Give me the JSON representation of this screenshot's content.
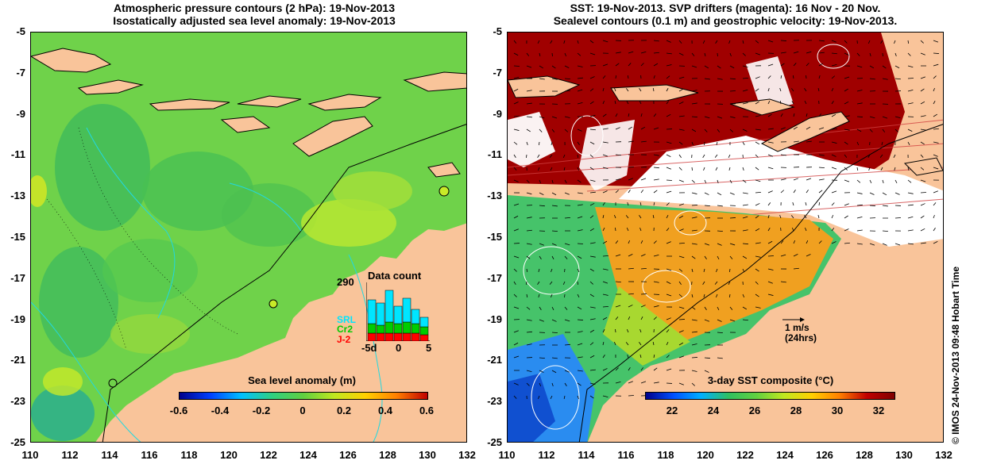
{
  "left_panel": {
    "title_line1": "Atmospheric pressure contours (2 hPa): 19-Nov-2013",
    "title_line2": "Isostatically adjusted sea level anomaly: 19-Nov-2013",
    "colorbar_title": "Sea level anomaly (m)",
    "colorbar_ticks": [
      "-0.6",
      "-0.4",
      "-0.2",
      "0",
      "0.2",
      "0.4",
      "0.6"
    ],
    "inset": {
      "title": "Data count",
      "max_label": "290",
      "legend": [
        {
          "name": "SRL",
          "color": "#00e5ff"
        },
        {
          "name": "Cr2",
          "color": "#00cc00"
        },
        {
          "name": "J-2",
          "color": "#ff0000"
        }
      ],
      "x_ticks": [
        "-5d",
        "0",
        "5"
      ]
    }
  },
  "right_panel": {
    "title_line1": "SST: 19-Nov-2013. SVP drifters (magenta): 16 Nov - 20 Nov.",
    "title_line2": "Sealevel contours (0.1 m) and geostrophic velocity: 19-Nov-2013.",
    "colorbar_title": "3-day SST composite (°C)",
    "colorbar_ticks": [
      "22",
      "24",
      "26",
      "28",
      "30",
      "32"
    ],
    "scale_arrow": {
      "line1": "1 m/s",
      "line2": "(24hrs)"
    }
  },
  "y_ticks": [
    "-5",
    "-7",
    "-9",
    "-11",
    "-13",
    "-15",
    "-17",
    "-19",
    "-21",
    "-23",
    "-25"
  ],
  "x_ticks": [
    "110",
    "112",
    "114",
    "116",
    "118",
    "120",
    "122",
    "124",
    "126",
    "128",
    "130",
    "132"
  ],
  "credit": "© IMOS 24-Nov-2013 09:48 Hobart Time",
  "colors": {
    "land": "#f9c49a",
    "sea_left": "#6fd24a",
    "sst_warm": "#f0a020",
    "sst_cool": "#2a8cf0",
    "cloud": "#ffffff",
    "hot": "#a00000"
  }
}
